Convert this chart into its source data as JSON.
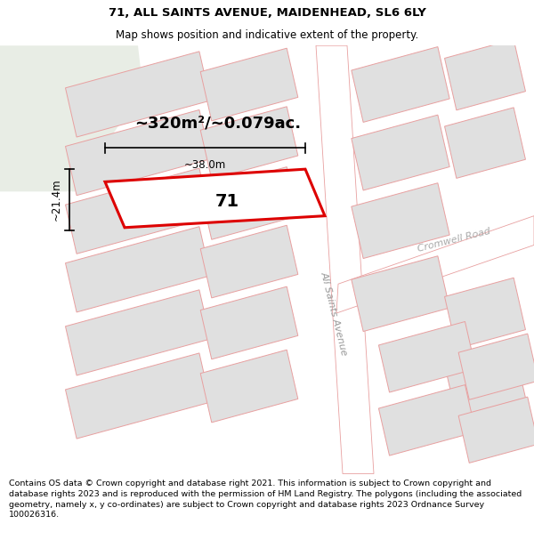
{
  "title_line1": "71, ALL SAINTS AVENUE, MAIDENHEAD, SL6 6LY",
  "title_line2": "Map shows position and indicative extent of the property.",
  "footer_text": "Contains OS data © Crown copyright and database right 2021. This information is subject to Crown copyright and database rights 2023 and is reproduced with the permission of HM Land Registry. The polygons (including the associated geometry, namely x, y co-ordinates) are subject to Crown copyright and database rights 2023 Ordnance Survey 100026316.",
  "map_bg": "#ffffff",
  "green_color": "#e8ede5",
  "plot_fill": "#e0e0e0",
  "plot_edge": "#e8a0a0",
  "highlight_edge": "#dd0000",
  "highlight_fill": "#ffffff",
  "road_fill": "#ffffff",
  "road_edge": "#e8a0a0",
  "street_label1": "All Saints Avenue",
  "street_label2": "Cromwell Road",
  "property_label": "71",
  "area_label": "~320m²/~0.079ac.",
  "width_label": "~38.0m",
  "height_label": "~21.4m",
  "title_fontsize": 9.5,
  "subtitle_fontsize": 8.5,
  "footer_fontsize": 6.8
}
